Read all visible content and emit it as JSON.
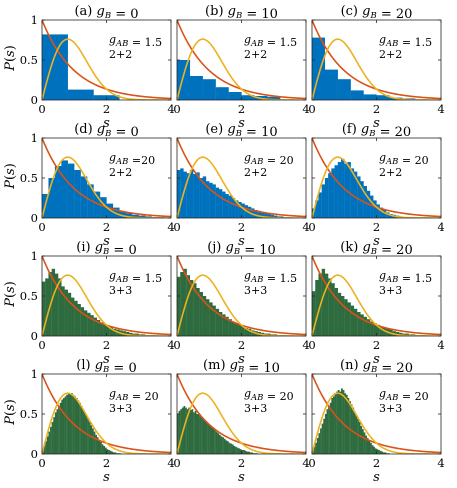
{
  "colors": {
    "blue": "#0072BD",
    "green": "#2E6B3E",
    "poisson": "#D95319",
    "wigner": "#EDB120"
  },
  "chart_data": [
    {
      "type": "bar",
      "title": "(a) g_B = 0",
      "row_label": "P(s)",
      "xlabel": "s",
      "x_ticks": [
        "0",
        "2",
        "4"
      ],
      "y_ticks": [
        "0",
        "0.5",
        "1"
      ],
      "xlim": [
        0,
        4
      ],
      "ylim": [
        0,
        1
      ],
      "annotation": {
        "coupling": "g_AB = 1.5",
        "size": "2+2"
      },
      "bin_width": 0.8,
      "values": [
        0.82,
        0.13,
        0.06,
        0.0,
        0.0
      ],
      "bar_color": "blue",
      "curves": [
        "poisson",
        "wigner"
      ]
    },
    {
      "type": "bar",
      "title": "(b) g_B = 10",
      "row_label": "",
      "xlabel": "s",
      "x_ticks": [
        "0",
        "2",
        "4"
      ],
      "y_ticks": [],
      "xlim": [
        0,
        4
      ],
      "ylim": [
        0,
        1
      ],
      "annotation": {
        "coupling": "g_AB = 1.5",
        "size": "2+2"
      },
      "bin_width": 0.4,
      "values": [
        0.5,
        0.3,
        0.26,
        0.16,
        0.1,
        0.06,
        0.05,
        0.04,
        0.0,
        0.0
      ],
      "bar_color": "blue",
      "curves": [
        "poisson",
        "wigner"
      ]
    },
    {
      "type": "bar",
      "title": "(c) g_B = 20",
      "row_label": "",
      "xlabel": "s",
      "x_ticks": [
        "0",
        "2",
        "4"
      ],
      "y_ticks": [],
      "xlim": [
        0,
        4
      ],
      "ylim": [
        0,
        1
      ],
      "annotation": {
        "coupling": "g_AB = 1.5",
        "size": "2+2"
      },
      "bin_width": 0.4,
      "values": [
        0.78,
        0.38,
        0.26,
        0.12,
        0.07,
        0.06,
        0.03,
        0.02,
        0.0,
        0.0
      ],
      "bar_color": "blue",
      "curves": [
        "poisson",
        "wigner"
      ]
    },
    {
      "type": "bar",
      "title": "(d) g_B = 0",
      "row_label": "P(s)",
      "xlabel": "s",
      "x_ticks": [
        "0",
        "2",
        "4"
      ],
      "y_ticks": [
        "0",
        "0.5",
        "1"
      ],
      "xlim": [
        0,
        4
      ],
      "ylim": [
        0,
        1
      ],
      "annotation": {
        "coupling": "g_AB =20",
        "size": "2+2"
      },
      "bin_width": 0.2,
      "values": [
        0.3,
        0.5,
        0.65,
        0.72,
        0.68,
        0.6,
        0.52,
        0.42,
        0.33,
        0.26,
        0.18,
        0.13,
        0.08,
        0.06,
        0.04,
        0.03,
        0.02,
        0.01,
        0.01,
        0.0
      ],
      "bar_color": "blue",
      "curves": [
        "poisson",
        "wigner"
      ]
    },
    {
      "type": "bar",
      "title": "(e) g_B = 10",
      "row_label": "",
      "xlabel": "s",
      "x_ticks": [
        "0",
        "2",
        "4"
      ],
      "y_ticks": [],
      "xlim": [
        0,
        4
      ],
      "ylim": [
        0,
        1
      ],
      "annotation": {
        "coupling": "g_AB = 20",
        "size": "2+2"
      },
      "bin_width": 0.1,
      "values": [
        0.6,
        0.62,
        0.58,
        0.56,
        0.6,
        0.55,
        0.57,
        0.5,
        0.52,
        0.46,
        0.44,
        0.42,
        0.38,
        0.36,
        0.33,
        0.3,
        0.28,
        0.25,
        0.22,
        0.2,
        0.18,
        0.16,
        0.14,
        0.12,
        0.1,
        0.09,
        0.08,
        0.06,
        0.05,
        0.04,
        0.03,
        0.02,
        0.02,
        0.01,
        0.01,
        0.0,
        0.0,
        0.0,
        0.0,
        0.0
      ],
      "bar_color": "blue",
      "curves": [
        "poisson",
        "wigner"
      ]
    },
    {
      "type": "bar",
      "title": "(f) g_B = 20",
      "row_label": "",
      "xlabel": "s",
      "x_ticks": [
        "0",
        "2",
        "4"
      ],
      "y_ticks": [],
      "xlim": [
        0,
        4
      ],
      "ylim": [
        0,
        1
      ],
      "annotation": {
        "coupling": "g_AB = 20",
        "size": "2+2"
      },
      "bin_width": 0.1,
      "values": [
        0.12,
        0.22,
        0.32,
        0.42,
        0.5,
        0.56,
        0.62,
        0.66,
        0.7,
        0.74,
        0.68,
        0.7,
        0.62,
        0.58,
        0.52,
        0.46,
        0.4,
        0.34,
        0.28,
        0.22,
        0.17,
        0.13,
        0.1,
        0.07,
        0.05,
        0.04,
        0.03,
        0.02,
        0.01,
        0.01,
        0.0,
        0.0,
        0.0,
        0.0,
        0.0,
        0.0,
        0.0,
        0.0,
        0.0,
        0.0
      ],
      "bar_color": "blue",
      "curves": [
        "poisson",
        "wigner"
      ]
    },
    {
      "type": "bar",
      "title": "(i) g_B = 0",
      "row_label": "P(s)",
      "xlabel": "s",
      "x_ticks": [
        "0",
        "2",
        "4"
      ],
      "y_ticks": [
        "0",
        "0.5",
        "1"
      ],
      "xlim": [
        0,
        4
      ],
      "ylim": [
        0,
        1
      ],
      "annotation": {
        "coupling": "g_AB = 1.5",
        "size": "3+3"
      },
      "bin_width": 0.1,
      "values": [
        0.68,
        0.72,
        0.8,
        0.84,
        0.78,
        0.72,
        0.62,
        0.58,
        0.54,
        0.48,
        0.44,
        0.4,
        0.36,
        0.32,
        0.29,
        0.26,
        0.23,
        0.2,
        0.17,
        0.15,
        0.13,
        0.11,
        0.09,
        0.08,
        0.07,
        0.06,
        0.05,
        0.04,
        0.03,
        0.03,
        0.02,
        0.02,
        0.01,
        0.01,
        0.01,
        0.0,
        0.0,
        0.0,
        0.0,
        0.0
      ],
      "bar_color": "green",
      "curves": [
        "poisson",
        "wigner"
      ]
    },
    {
      "type": "bar",
      "title": "(j) g_B = 10",
      "row_label": "",
      "xlabel": "s",
      "x_ticks": [
        "0",
        "2",
        "4"
      ],
      "y_ticks": [],
      "xlim": [
        0,
        4
      ],
      "ylim": [
        0,
        1
      ],
      "annotation": {
        "coupling": "g_AB = 1.5",
        "size": "3+3"
      },
      "bin_width": 0.1,
      "values": [
        0.74,
        0.8,
        0.84,
        0.76,
        0.7,
        0.66,
        0.6,
        0.55,
        0.5,
        0.46,
        0.42,
        0.38,
        0.34,
        0.3,
        0.27,
        0.24,
        0.21,
        0.18,
        0.16,
        0.14,
        0.12,
        0.1,
        0.09,
        0.07,
        0.06,
        0.05,
        0.04,
        0.03,
        0.03,
        0.02,
        0.02,
        0.01,
        0.01,
        0.01,
        0.0,
        0.0,
        0.0,
        0.0,
        0.0,
        0.0
      ],
      "bar_color": "green",
      "curves": [
        "poisson",
        "wigner"
      ]
    },
    {
      "type": "bar",
      "title": "(k) g_B = 20",
      "row_label": "",
      "xlabel": "s",
      "x_ticks": [
        "0",
        "2",
        "4"
      ],
      "y_ticks": [],
      "xlim": [
        0,
        4
      ],
      "ylim": [
        0,
        1
      ],
      "annotation": {
        "coupling": "g_AB = 1.5",
        "size": "3+3"
      },
      "bin_width": 0.1,
      "values": [
        0.56,
        0.7,
        0.78,
        0.84,
        0.78,
        0.72,
        0.66,
        0.6,
        0.54,
        0.5,
        0.46,
        0.42,
        0.38,
        0.34,
        0.3,
        0.27,
        0.24,
        0.21,
        0.18,
        0.16,
        0.14,
        0.12,
        0.1,
        0.09,
        0.08,
        0.06,
        0.05,
        0.04,
        0.03,
        0.03,
        0.02,
        0.02,
        0.01,
        0.01,
        0.01,
        0.0,
        0.0,
        0.0,
        0.0,
        0.0
      ],
      "bar_color": "green",
      "curves": [
        "poisson",
        "wigner"
      ]
    },
    {
      "type": "bar",
      "title": "(l) g_B = 0",
      "row_label": "P(s)",
      "xlabel": "s",
      "x_ticks": [
        "0",
        "2",
        "4"
      ],
      "y_ticks": [
        "0",
        "0.5",
        "1"
      ],
      "xlim": [
        0,
        4
      ],
      "ylim": [
        0,
        1
      ],
      "annotation": {
        "coupling": "g_AB = 20",
        "size": "3+3"
      },
      "bin_width": 0.05,
      "values": [
        0.04,
        0.1,
        0.16,
        0.22,
        0.28,
        0.34,
        0.4,
        0.46,
        0.52,
        0.56,
        0.6,
        0.64,
        0.68,
        0.7,
        0.72,
        0.74,
        0.76,
        0.75,
        0.76,
        0.74,
        0.72,
        0.7,
        0.67,
        0.64,
        0.6,
        0.56,
        0.52,
        0.48,
        0.44,
        0.4,
        0.36,
        0.32,
        0.28,
        0.24,
        0.21,
        0.18,
        0.15,
        0.12,
        0.1,
        0.08,
        0.06,
        0.05,
        0.04,
        0.03,
        0.02,
        0.02,
        0.01,
        0.01,
        0.01,
        0.0,
        0.0,
        0.0,
        0.0,
        0.0,
        0.0,
        0.0,
        0.0,
        0.0,
        0.0,
        0.0,
        0.0,
        0.0,
        0.0,
        0.0,
        0.0,
        0.0,
        0.0,
        0.0,
        0.0,
        0.0,
        0.0,
        0.0,
        0.0,
        0.0,
        0.0,
        0.0,
        0.0,
        0.0,
        0.0,
        0.0
      ],
      "bar_color": "green",
      "curves": [
        "poisson",
        "wigner"
      ]
    },
    {
      "type": "bar",
      "title": "(m) g_B = 10",
      "row_label": "",
      "xlabel": "s",
      "x_ticks": [
        "0",
        "2",
        "4"
      ],
      "y_ticks": [],
      "xlim": [
        0,
        4
      ],
      "ylim": [
        0,
        1
      ],
      "annotation": {
        "coupling": "g_AB = 20",
        "size": "3+3"
      },
      "bin_width": 0.05,
      "values": [
        0.5,
        0.54,
        0.56,
        0.58,
        0.6,
        0.58,
        0.56,
        0.58,
        0.55,
        0.56,
        0.52,
        0.54,
        0.5,
        0.5,
        0.47,
        0.46,
        0.44,
        0.42,
        0.4,
        0.38,
        0.36,
        0.34,
        0.32,
        0.3,
        0.28,
        0.26,
        0.24,
        0.22,
        0.21,
        0.19,
        0.17,
        0.16,
        0.14,
        0.13,
        0.12,
        0.1,
        0.09,
        0.08,
        0.07,
        0.06,
        0.05,
        0.05,
        0.04,
        0.03,
        0.03,
        0.02,
        0.02,
        0.01,
        0.01,
        0.01,
        0.0,
        0.0,
        0.0,
        0.0,
        0.0,
        0.0,
        0.0,
        0.0,
        0.0,
        0.0,
        0.0,
        0.0,
        0.0,
        0.0,
        0.0,
        0.0,
        0.0,
        0.0,
        0.0,
        0.0,
        0.0,
        0.0,
        0.0,
        0.0,
        0.0,
        0.0,
        0.0,
        0.0,
        0.0,
        0.0
      ],
      "bar_color": "green",
      "curves": [
        "poisson",
        "wigner"
      ]
    },
    {
      "type": "bar",
      "title": "(n) g_B = 20",
      "row_label": "",
      "xlabel": "s",
      "x_ticks": [
        "0",
        "2",
        "4"
      ],
      "y_ticks": [],
      "xlim": [
        0,
        4
      ],
      "ylim": [
        0,
        1
      ],
      "annotation": {
        "coupling": "g_AB = 20",
        "size": "3+3"
      },
      "bin_width": 0.05,
      "values": [
        0.04,
        0.09,
        0.14,
        0.2,
        0.26,
        0.32,
        0.38,
        0.44,
        0.5,
        0.56,
        0.6,
        0.64,
        0.7,
        0.72,
        0.76,
        0.78,
        0.8,
        0.78,
        0.82,
        0.8,
        0.76,
        0.74,
        0.7,
        0.66,
        0.62,
        0.58,
        0.53,
        0.48,
        0.44,
        0.4,
        0.35,
        0.31,
        0.27,
        0.23,
        0.2,
        0.17,
        0.14,
        0.11,
        0.09,
        0.07,
        0.06,
        0.05,
        0.04,
        0.03,
        0.02,
        0.02,
        0.01,
        0.01,
        0.0,
        0.0,
        0.0,
        0.0,
        0.0,
        0.0,
        0.0,
        0.0,
        0.0,
        0.0,
        0.0,
        0.0,
        0.0,
        0.0,
        0.0,
        0.0,
        0.0,
        0.0,
        0.0,
        0.0,
        0.0,
        0.0,
        0.0,
        0.0,
        0.0,
        0.0,
        0.0,
        0.0,
        0.0,
        0.0,
        0.0,
        0.0
      ],
      "bar_color": "green",
      "curves": [
        "poisson",
        "wigner"
      ]
    }
  ]
}
